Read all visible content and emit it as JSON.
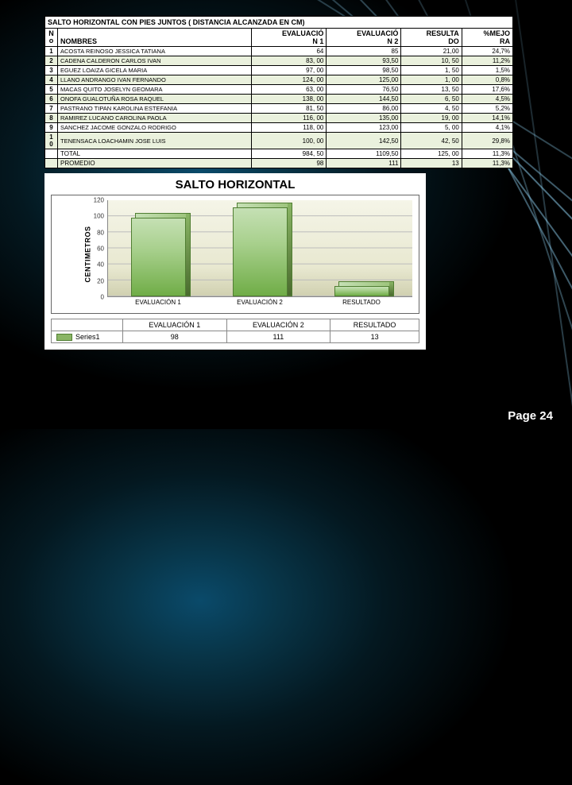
{
  "page_label": "Page 24",
  "table": {
    "title": "SALTO HORIZONTAL CON PIES JUNTOS ( DISTANCIA ALCANZADA EN CM)",
    "headers": {
      "no_top": "N",
      "no_bot": "o",
      "names": "NOMBRES",
      "eval1_top": "EVALUACIÓ",
      "eval1_bot": "N 1",
      "eval2_top": "EVALUACIÓ",
      "eval2_bot": "N 2",
      "result_top": "RESULTA",
      "result_bot": "DO",
      "mejora_top": "%MEJO",
      "mejora_bot": "RA"
    },
    "rows": [
      {
        "n": "1",
        "name": "ACOSTA REINOSO JESSICA TATIANA",
        "e1": "64",
        "e2": "85",
        "res": "21,00",
        "mej": "24,7%"
      },
      {
        "n": "2",
        "name": "CADENA CALDERON CARLOS IVAN",
        "e1": "83, 00",
        "e2": "93,50",
        "res": "10, 50",
        "mej": "11,2%"
      },
      {
        "n": "3",
        "name": "EGUEZ LOAIZA GICELA MARIA",
        "e1": "97, 00",
        "e2": "98,50",
        "res": "1, 50",
        "mej": "1,5%"
      },
      {
        "n": "4",
        "name": "LLANO ANDRANGO IVAN FERNANDO",
        "e1": "124, 00",
        "e2": "125,00",
        "res": "1, 00",
        "mej": "0,8%"
      },
      {
        "n": "5",
        "name": "MACAS QUITO JOSELYN GEOMARA",
        "e1": "63, 00",
        "e2": "76,50",
        "res": "13, 50",
        "mej": "17,6%"
      },
      {
        "n": "6",
        "name": "ONOFA GUALOTUÑA ROSA RAQUEL",
        "e1": "138, 00",
        "e2": "144,50",
        "res": "6, 50",
        "mej": "4,5%"
      },
      {
        "n": "7",
        "name": "PASTRANO TIPAN KAROLINA ESTEFANIA",
        "e1": "81, 50",
        "e2": "86,00",
        "res": "4, 50",
        "mej": "5,2%"
      },
      {
        "n": "8",
        "name": "RAMIREZ LUCANO CAROLINA PAOLA",
        "e1": "116, 00",
        "e2": "135,00",
        "res": "19, 00",
        "mej": "14,1%"
      },
      {
        "n": "9",
        "name": "SANCHEZ JACOME GONZALO RODRIGO",
        "e1": "118, 00",
        "e2": "123,00",
        "res": "5, 00",
        "mej": "4,1%"
      },
      {
        "n": "1 0",
        "name": "TENENSACA LOACHAMIN JOSE LUIS",
        "e1": "100, 00",
        "e2": "142,50",
        "res": "42, 50",
        "mej": "29,8%"
      }
    ],
    "footer": [
      {
        "label": "TOTAL",
        "e1": "984, 50",
        "e2": "1109,50",
        "res": "125, 00",
        "mej": "11,3%"
      },
      {
        "label": "PROMEDIO",
        "e1": "98",
        "e2": "111",
        "res": "13",
        "mej": "11,3%"
      }
    ],
    "row_even_bg": "#eaf1dd",
    "row_odd_bg": "#ffffff"
  },
  "chart": {
    "type": "bar",
    "title": "SALTO HORIZONTAL",
    "ylabel": "CENTIMETROS",
    "ylabel_fontsize": 9,
    "title_fontsize": 15,
    "ylim": [
      0,
      120
    ],
    "ytick_step": 20,
    "yticks": [
      "0",
      "20",
      "40",
      "60",
      "80",
      "100",
      "120"
    ],
    "categories": [
      "EVALUACIÓN 1",
      "EVALUACIÓN 2",
      "RESULTADO"
    ],
    "series_label": "Series1",
    "values": [
      98,
      111,
      13
    ],
    "bar_color": "#8ab565",
    "bar_border": "#507e32",
    "background_color": "#ffffff",
    "grid_color": "#bbbbbb",
    "bar_width": 0.18
  }
}
